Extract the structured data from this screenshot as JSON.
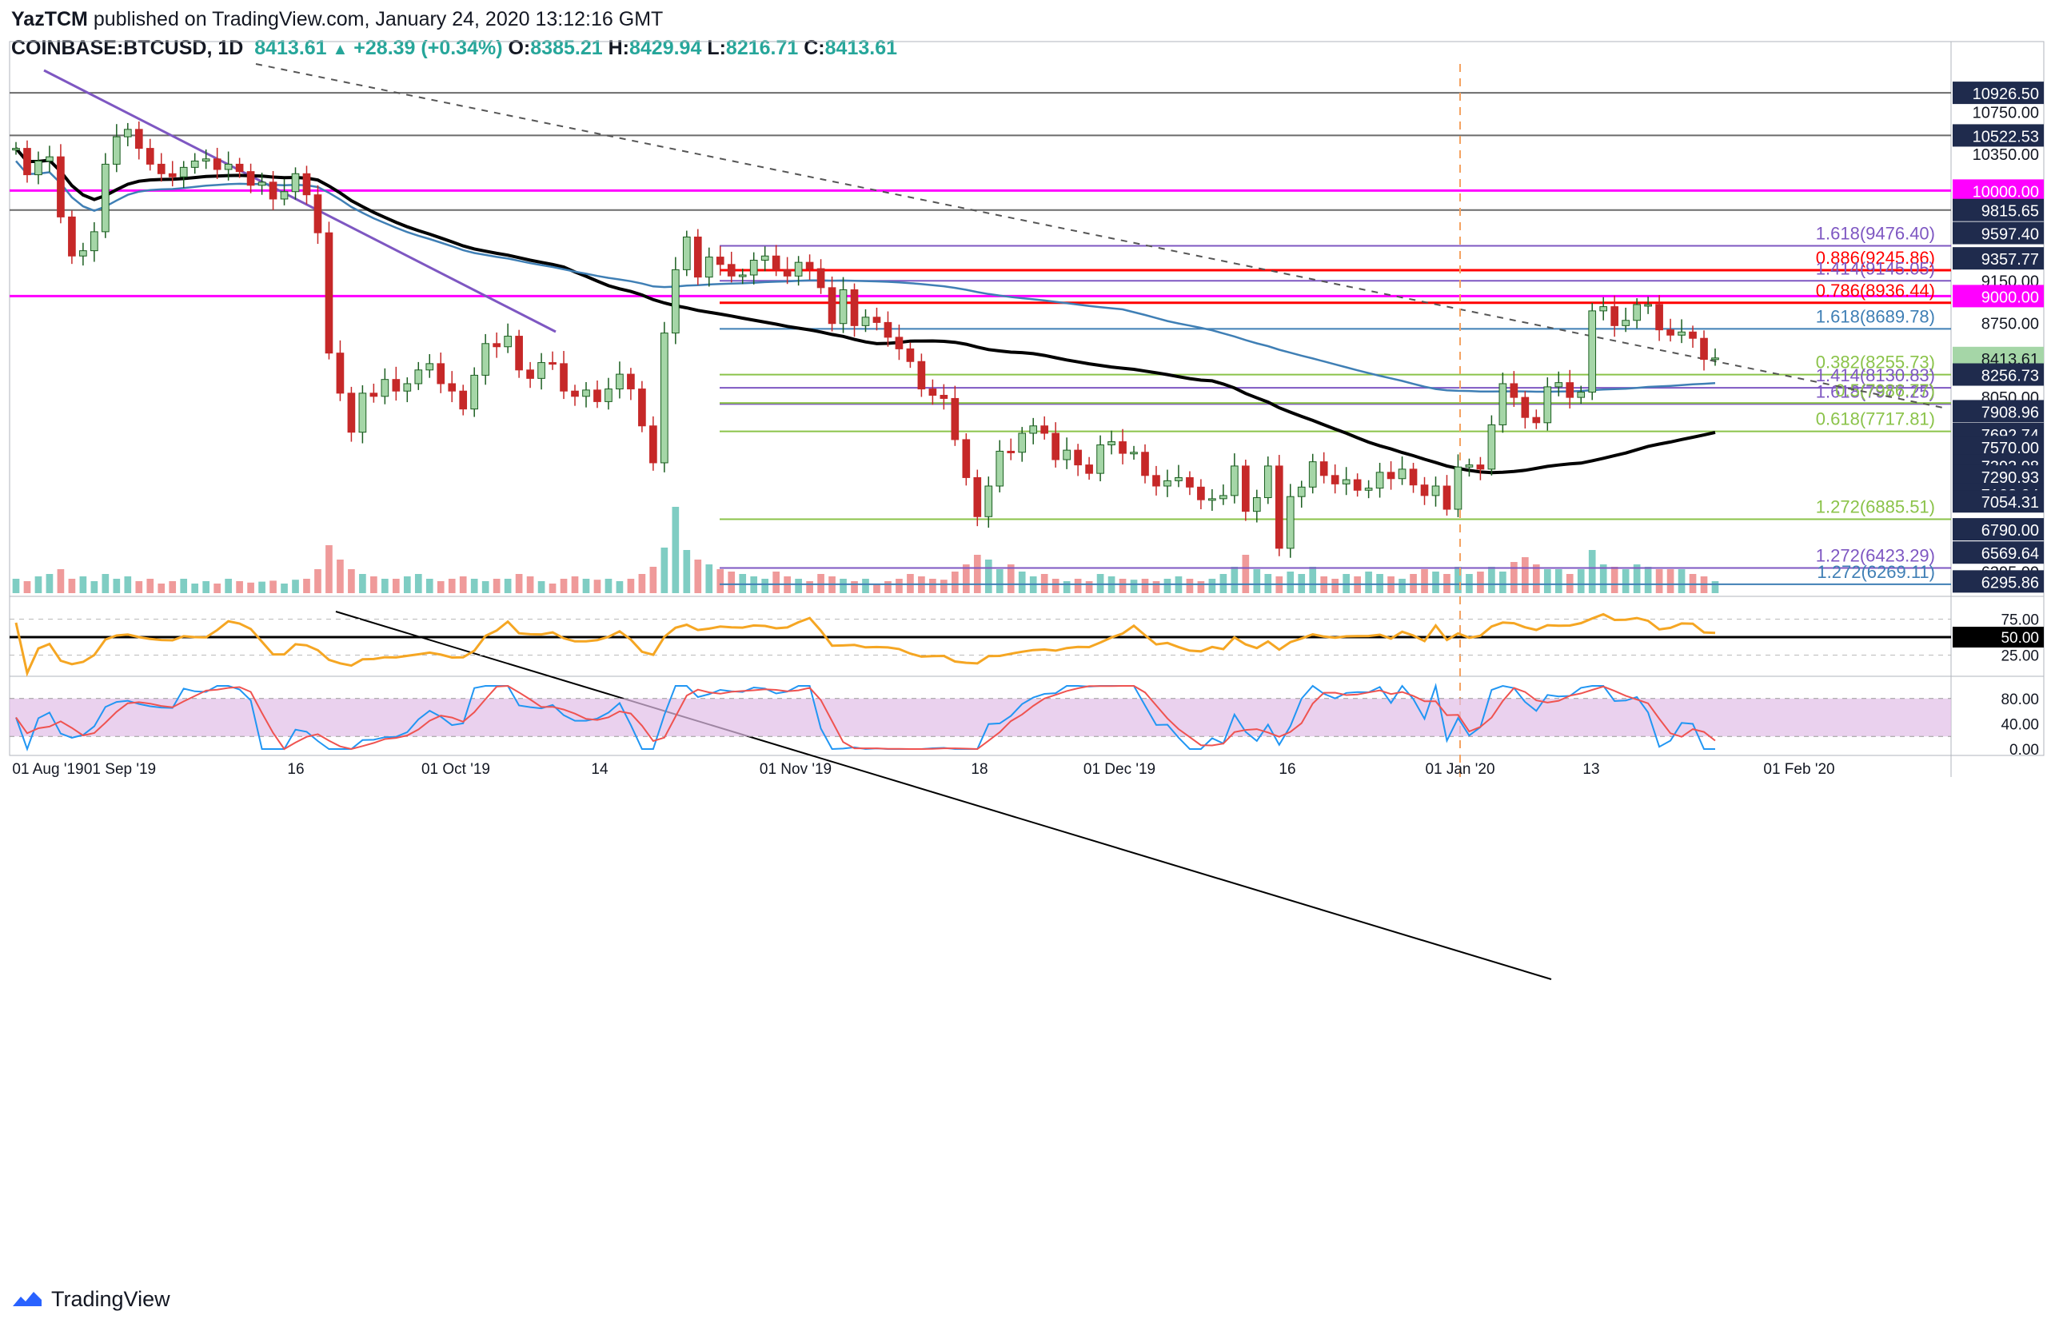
{
  "header": {
    "author": "YazTCM",
    "published": "published on TradingView.com, January 24, 2020 13:12:16 GMT",
    "symbol": "COINBASE:BTCUSD, 1D",
    "last": "8413.61",
    "change": "+28.39 (+0.34%)",
    "open_label": "O:",
    "open": "8385.21",
    "high_label": "H:",
    "high": "8429.94",
    "low_label": "L:",
    "low": "8216.71",
    "close_label": "C:",
    "close": "8413.61"
  },
  "footer": {
    "brand": "TradingView",
    "logo_icon": "tradingview-logo-icon"
  },
  "colors": {
    "up": "#26a69a",
    "down": "#c62828",
    "up_fill": "#a5d6a7",
    "ma_black": "#000000",
    "ma_blue": "#3f7fb5",
    "magenta": "#ff00ff",
    "red_level": "#ff0000",
    "purple": "#7e57c2",
    "rsi": "#f5a623",
    "stoch_k": "#2196f3",
    "stoch_d": "#ef5350",
    "stoch_band": "#e1bee7",
    "vol_up": "#7fcdc3",
    "vol_down": "#ef9a9a"
  },
  "chart_data": {
    "type": "candlestick",
    "symbol": "BTCUSD",
    "timeframe": "1D",
    "ylim": [
      6200,
      11200
    ],
    "price_axis_labels": [
      "10926.50",
      "10750.00",
      "10522.53",
      "10350.00",
      "10000.00",
      "9815.65",
      "9597.40",
      "9357.77",
      "9150.00",
      "9000.00",
      "8750.00",
      "8413.61",
      "8256.73",
      "8050.00",
      "7908.96",
      "7692.74",
      "7570.00",
      "7393.98",
      "7290.93",
      "7123.94",
      "7107.03",
      "7054.31",
      "6790.00",
      "6569.64",
      "6395.00",
      "6295.86"
    ],
    "time_axis_labels": [
      "01 Aug '19",
      "01 Sep '19",
      "16",
      "01 Oct '19",
      "14",
      "01 Nov '19",
      "18",
      "01 Dec '19",
      "16",
      "01 Jan '20",
      "13",
      "01 Feb '20"
    ],
    "horizontal_levels": [
      {
        "value": 10000.0,
        "color": "magenta"
      },
      {
        "value": 9000.0,
        "color": "magenta"
      },
      {
        "value": 10926.5,
        "color": "gray"
      },
      {
        "value": 10522.53,
        "color": "gray"
      },
      {
        "value": 9815.65,
        "color": "gray"
      },
      {
        "value": 9245.86,
        "color": "red",
        "label": "0.886(9245.86)"
      },
      {
        "value": 8936.44,
        "color": "red",
        "label": "0.786(8936.44)"
      },
      {
        "value": 9476.4,
        "color": "purple",
        "label": "1.618(9476.40)"
      },
      {
        "value": 9145.05,
        "color": "purple",
        "label": "1.414(9145.05)"
      },
      {
        "value": 8689.78,
        "color": "blue",
        "label": "1.618(8689.78)"
      },
      {
        "value": 8255.73,
        "color": "green",
        "label": "0.382(8255.73)"
      },
      {
        "value": 8130.83,
        "color": "purple",
        "label": "1.414(8130.83)"
      },
      {
        "value": 7977.25,
        "color": "purple",
        "label": "1.618(7977.25)"
      },
      {
        "value": 7986.77,
        "color": "green",
        "label": "0.5(7986.77)"
      },
      {
        "value": 7717.81,
        "color": "green",
        "label": "0.618(7717.81)"
      },
      {
        "value": 6885.51,
        "color": "green",
        "label": "1.272(6885.51)"
      },
      {
        "value": 6423.29,
        "color": "purple",
        "label": "1.272(6423.29)"
      },
      {
        "value": 6269.11,
        "color": "blue",
        "label": "1.272(6269.11)"
      }
    ],
    "closes": [
      10400,
      10150,
      10280,
      10320,
      9750,
      9380,
      9430,
      9610,
      10250,
      10510,
      10580,
      10400,
      10250,
      10160,
      10130,
      10220,
      10280,
      10300,
      10200,
      10250,
      10180,
      10050,
      10080,
      9920,
      9990,
      10160,
      9960,
      9600,
      8460,
      8080,
      7710,
      8080,
      8050,
      8210,
      8100,
      8170,
      8300,
      8360,
      8170,
      8100,
      7930,
      8250,
      8550,
      8520,
      8620,
      8300,
      8220,
      8370,
      8360,
      8100,
      8050,
      8110,
      8000,
      8120,
      8260,
      8120,
      7770,
      7420,
      8650,
      9250,
      9560,
      9180,
      9370,
      9300,
      9190,
      9200,
      9340,
      9380,
      9250,
      9190,
      9320,
      9260,
      9080,
      8740,
      9060,
      8720,
      8800,
      8750,
      8610,
      8500,
      8380,
      8120,
      8060,
      8030,
      7640,
      7280,
      6910,
      7200,
      7530,
      7520,
      7700,
      7770,
      7700,
      7450,
      7540,
      7400,
      7320,
      7590,
      7620,
      7510,
      7520,
      7300,
      7200,
      7250,
      7280,
      7190,
      7070,
      7080,
      7110,
      7390,
      6960,
      7090,
      7390,
      6610,
      7100,
      7190,
      7430,
      7300,
      7220,
      7260,
      7160,
      7180,
      7330,
      7270,
      7360,
      7210,
      7110,
      7200,
      6980,
      7380,
      7400,
      7360,
      7780,
      8170,
      8040,
      7850,
      7800,
      8140,
      8180,
      8040,
      8090,
      8860,
      8900,
      8720,
      8770,
      8920,
      8920,
      8680,
      8630,
      8660,
      8600,
      8400,
      8413.61
    ],
    "volume_fraction": [
      0.3,
      0.25,
      0.35,
      0.4,
      0.5,
      0.3,
      0.35,
      0.25,
      0.4,
      0.3,
      0.35,
      0.25,
      0.3,
      0.2,
      0.25,
      0.3,
      0.2,
      0.25,
      0.2,
      0.3,
      0.25,
      0.22,
      0.24,
      0.26,
      0.2,
      0.28,
      0.3,
      0.5,
      1.0,
      0.7,
      0.5,
      0.4,
      0.35,
      0.3,
      0.3,
      0.35,
      0.4,
      0.3,
      0.25,
      0.3,
      0.35,
      0.3,
      0.25,
      0.3,
      0.3,
      0.4,
      0.35,
      0.25,
      0.2,
      0.3,
      0.35,
      0.3,
      0.28,
      0.3,
      0.25,
      0.3,
      0.4,
      0.55,
      0.95,
      1.8,
      0.9,
      0.7,
      0.6,
      0.5,
      0.45,
      0.4,
      0.35,
      0.3,
      0.45,
      0.35,
      0.3,
      0.25,
      0.4,
      0.35,
      0.3,
      0.25,
      0.3,
      0.2,
      0.25,
      0.3,
      0.4,
      0.35,
      0.3,
      0.28,
      0.45,
      0.6,
      0.8,
      0.7,
      0.5,
      0.6,
      0.45,
      0.35,
      0.4,
      0.3,
      0.25,
      0.3,
      0.25,
      0.4,
      0.35,
      0.3,
      0.28,
      0.3,
      0.25,
      0.3,
      0.35,
      0.3,
      0.25,
      0.3,
      0.4,
      0.55,
      0.8,
      0.5,
      0.4,
      0.35,
      0.45,
      0.4,
      0.55,
      0.35,
      0.3,
      0.4,
      0.35,
      0.45,
      0.4,
      0.35,
      0.3,
      0.4,
      0.5,
      0.45,
      0.4,
      0.55,
      0.4,
      0.45,
      0.55,
      0.45,
      0.65,
      0.75,
      0.6,
      0.5,
      0.5,
      0.4,
      0.5,
      0.9,
      0.6,
      0.55,
      0.5,
      0.6,
      0.55,
      0.5,
      0.5,
      0.5,
      0.4,
      0.35,
      0.25
    ],
    "rsi": {
      "levels": [
        75,
        50,
        25
      ],
      "axis_labels": [
        "75.00",
        "50.00",
        "25.00"
      ]
    },
    "stoch_rsi": {
      "levels": [
        80,
        20
      ],
      "axis_labels": [
        "80.00",
        "40.00",
        "0.00"
      ]
    }
  }
}
